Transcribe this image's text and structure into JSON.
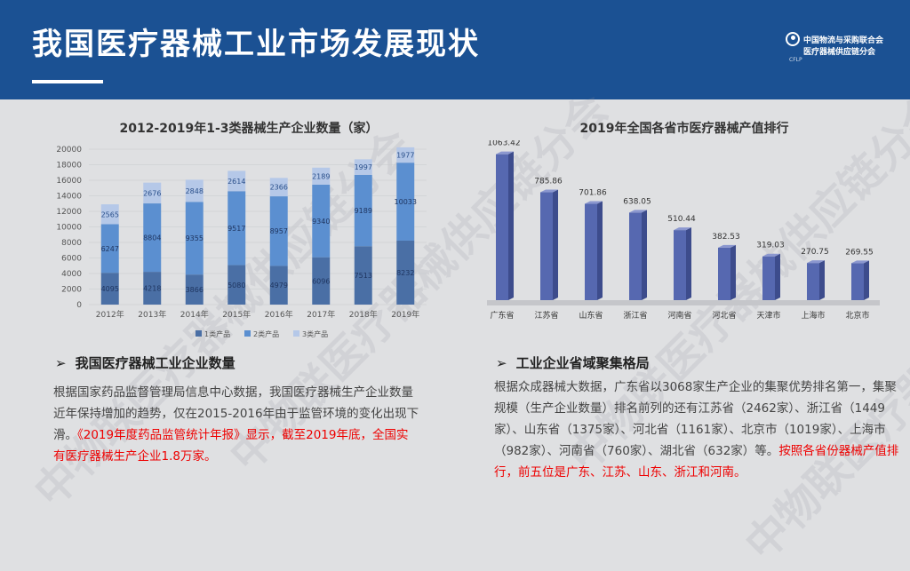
{
  "header": {
    "title": "我国医疗器械工业市场发展现状",
    "logo_line1": "中国物流与采购联合会",
    "logo_line2": "医疗器械供应链分会",
    "logo_sub": "CFLP"
  },
  "watermark": "中物联医疗器械供应链分会",
  "chart_data": [
    {
      "type": "bar",
      "stacked": true,
      "title": "2012-2019年1-3类器械生产企业数量（家）",
      "categories": [
        "2012年",
        "2013年",
        "2014年",
        "2015年",
        "2016年",
        "2017年",
        "2018年",
        "2019年"
      ],
      "ylim": [
        0,
        20000
      ],
      "yticks": [
        "0",
        "2000",
        "4000",
        "6000",
        "8000",
        "10000",
        "12000",
        "14000",
        "16000",
        "18000",
        "20000"
      ],
      "legend_position": "bottom",
      "series": [
        {
          "name": "1类产品",
          "color": "#4a6fa5",
          "values": [
            4095,
            4218,
            3866,
            5080,
            4979,
            6096,
            7513,
            8232
          ]
        },
        {
          "name": "2类产品",
          "color": "#5b8fd0",
          "values": [
            6247,
            8804,
            9355,
            9517,
            8957,
            9340,
            9189,
            10033
          ]
        },
        {
          "name": "3类产品",
          "color": "#b5c8e8",
          "values": [
            2565,
            2676,
            2848,
            2614,
            2366,
            2189,
            1997,
            1977
          ]
        }
      ]
    },
    {
      "type": "bar",
      "title": "2019年全国各省市医疗器械产值排行",
      "categories": [
        "广东省",
        "江苏省",
        "山东省",
        "浙江省",
        "河南省",
        "河北省",
        "天津市",
        "上海市",
        "北京市"
      ],
      "values": [
        1063.42,
        785.86,
        701.86,
        638.05,
        510.44,
        382.53,
        319.03,
        270.75,
        269.55
      ],
      "labels": [
        "1063.42",
        "785.86",
        "701.86",
        "638.05",
        "510.44",
        "382.53",
        "319.03",
        "270.75",
        "269.55"
      ],
      "ylim": [
        0,
        1100
      ],
      "color": "#5668b0"
    }
  ],
  "sections": {
    "left_head": "我国医疗器械工业企业数量",
    "left_para_normal": "根据国家药品监督管理局信息中心数据，我国医疗器械生产企业数量近年保持增加的趋势，仅在2015-2016年由于监管环境的变化出现下滑。",
    "left_para_red": "《2019年度药品监管统计年报》显示，截至2019年底，全国实有医疗器械生产企业1.8万家。",
    "right_head": "工业企业省域聚集格局",
    "right_para_normal": "根据众成器械大数据，广东省以3068家生产企业的集聚优势排名第一，集聚规模（生产企业数量）排名前列的还有江苏省（2462家）、浙江省（1449家）、山东省（1375家）、河北省（1161家）、北京市（1019家）、上海市（982家）、河南省（760家）、湖北省（632家）等。",
    "right_para_red": "按照各省份器械产值排行，前五位是广东、江苏、山东、浙江和河南。"
  }
}
